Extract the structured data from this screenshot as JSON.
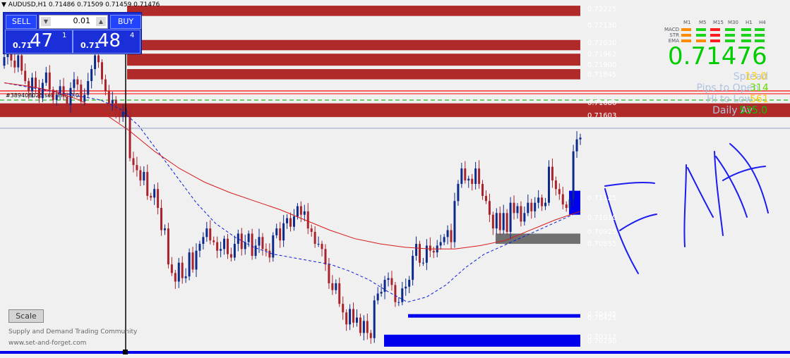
{
  "symbol_bar": "AUDUSD,H1  0.71486 0.71509 0.71459 0.71476",
  "trade_panel": {
    "sell_label": "SELL",
    "buy_label": "BUY",
    "lot_size": "0.01",
    "lot_down_icon": "triangle-down",
    "lot_up_icon": "triangle-up",
    "sell_prefix": "0.71",
    "sell_big": "47",
    "sell_sup": "1",
    "buy_prefix": "0.71",
    "buy_big": "48",
    "buy_sup": "4"
  },
  "timeframe_panel": {
    "timeframes": [
      "M1",
      "M5",
      "M15",
      "M30",
      "H1",
      "H4"
    ],
    "indicators": [
      {
        "name": "MACD",
        "signals": [
          "orange",
          "green",
          "red",
          "green",
          "green",
          "green"
        ]
      },
      {
        "name": "STR",
        "signals": [
          "orange",
          "green",
          "red",
          "green",
          "green",
          "green"
        ]
      },
      {
        "name": "EMA",
        "signals": [
          "orange",
          "orange",
          "red",
          "green",
          "green",
          "green"
        ]
      }
    ]
  },
  "current_price": "0.71476",
  "stats": [
    {
      "label": "Spread",
      "value": "13.0",
      "color": "#ffcc00"
    },
    {
      "label": "Pips to Open",
      "value": "314",
      "color": "#66dd00"
    },
    {
      "label": "Hi to Low",
      "value": "561",
      "color": "#ffcc00"
    },
    {
      "label": "Daily Av",
      "value": "535.0",
      "color": "#00cc00"
    }
  ],
  "scale_button": "Scale",
  "footer": {
    "community": "Supply and Demand Trading Community",
    "website": "www.set-and-forget.com"
  },
  "colors": {
    "supply_zone": "#b02a2a",
    "demand_zone": "#0000ee",
    "neutral_zone": "#707070",
    "bull_candle": "#0b2a8a",
    "bear_candle": "#a8232b",
    "slow_ma": "#d61b1b",
    "fast_ma": "#0a1fd6",
    "price_label": "#00dd00",
    "annotation_ink": "#1c1cf0"
  },
  "order_label": "#389408026 sell limit 0.01",
  "chart_data": {
    "type": "candlestick",
    "symbol": "AUDUSD",
    "timeframe": "H1",
    "ohlc": {
      "open": 0.71486,
      "high": 0.71509,
      "low": 0.71459,
      "close": 0.71476
    },
    "price_levels": [
      "0.72225",
      "0.72130",
      "0.72030",
      "0.71962",
      "0.71900",
      "0.71845",
      "0.71680",
      "0.71603",
      "0.71125",
      "0.71010",
      "0.70925",
      "0.70855",
      "0.70425",
      "0.70445",
      "0.70312",
      "0.70290"
    ],
    "zones": [
      {
        "kind": "supply",
        "top": 0.7225,
        "bottom": 0.7219
      },
      {
        "kind": "supply",
        "top": 0.7205,
        "bottom": 0.7199
      },
      {
        "kind": "supply",
        "top": 0.7197,
        "bottom": 0.719
      },
      {
        "kind": "supply",
        "top": 0.7188,
        "bottom": 0.7182
      },
      {
        "kind": "supply",
        "top": 0.7168,
        "bottom": 0.716
      },
      {
        "kind": "demand",
        "top": 0.7117,
        "bottom": 0.7103
      },
      {
        "kind": "neutral",
        "top": 0.7092,
        "bottom": 0.7086
      },
      {
        "kind": "demand",
        "top": 0.7045,
        "bottom": 0.7043
      },
      {
        "kind": "demand",
        "top": 0.7033,
        "bottom": 0.7026
      }
    ],
    "series": [
      {
        "values": [
          0.7195,
          0.7199,
          0.7193,
          0.7189,
          0.7196,
          0.7187,
          0.7181,
          0.7175,
          0.7183,
          0.7177,
          0.7171,
          0.718,
          0.7186,
          0.7176,
          0.717,
          0.7173,
          0.7178,
          0.7172,
          0.7167,
          0.7177,
          0.7182,
          0.7179,
          0.7169,
          0.7173,
          0.7181,
          0.7188,
          0.7196,
          0.7192,
          0.7182,
          0.7175,
          0.7168,
          0.717,
          0.7163,
          0.716,
          0.7163,
          0.7163,
          0.7136,
          0.7132,
          0.7129,
          0.7123,
          0.7128,
          0.7114,
          0.7113,
          0.7118,
          0.7107,
          0.7094,
          0.7095,
          0.7074,
          0.7069,
          0.7064,
          0.7075,
          0.7066,
          0.7067,
          0.7081,
          0.7071,
          0.7082,
          0.7086,
          0.709,
          0.7095,
          0.7088,
          0.7087,
          0.7082,
          0.7083,
          0.7089,
          0.708,
          0.7078,
          0.7086,
          0.7092,
          0.7083,
          0.7087,
          0.7092,
          0.7079,
          0.7085,
          0.709,
          0.7083,
          0.7082,
          0.7078,
          0.7091,
          0.7095,
          0.7088,
          0.7098,
          0.7101,
          0.7096,
          0.7102,
          0.7108,
          0.7103,
          0.7105,
          0.7095,
          0.7093,
          0.7086,
          0.7086,
          0.7083,
          0.7074,
          0.7063,
          0.7059,
          0.7063,
          0.7051,
          0.7046,
          0.7039,
          0.7048,
          0.704,
          0.7043,
          0.7034,
          0.7041,
          0.7034,
          0.7031,
          0.7053,
          0.7057,
          0.7058,
          0.7065,
          0.7066,
          0.7062,
          0.7052,
          0.7052,
          0.706,
          0.7061,
          0.7065,
          0.7079,
          0.7086,
          0.7075,
          0.7075,
          0.7085,
          0.7082,
          0.7081,
          0.7085,
          0.7087,
          0.709,
          0.7094,
          0.7087,
          0.7111,
          0.7121,
          0.713,
          0.7123,
          0.7124,
          0.7121,
          0.713,
          0.7121,
          0.7114,
          0.7111,
          0.7103,
          0.7095,
          0.7104,
          0.7094,
          0.7104,
          0.7093,
          0.711,
          0.7104,
          0.7108,
          0.7099,
          0.7104,
          0.711,
          0.7105,
          0.711,
          0.7113,
          0.7108,
          0.711,
          0.7131,
          0.7123,
          0.7118,
          0.7115,
          0.7109,
          0.7107,
          0.7112,
          0.714,
          0.7147,
          0.7148
        ]
      },
      {
        "values": [
          0.718,
          0.7178,
          0.7176,
          0.7174,
          0.7172,
          0.717,
          0.7165,
          0.7155,
          0.714,
          0.7125,
          0.711,
          0.7098,
          0.709,
          0.7084,
          0.708,
          0.7078,
          0.7076,
          0.7074,
          0.707,
          0.7065,
          0.7058,
          0.7052,
          0.7055,
          0.7062,
          0.7072,
          0.708,
          0.7085,
          0.709,
          0.7095,
          0.71,
          0.7105
        ]
      },
      {
        "values": [
          0.718,
          0.7178,
          0.7175,
          0.717,
          0.7162,
          0.7152,
          0.714,
          0.713,
          0.7122,
          0.7116,
          0.7111,
          0.7106,
          0.71,
          0.7094,
          0.7089,
          0.7086,
          0.7084,
          0.7083,
          0.7083,
          0.7085,
          0.7088,
          0.7094,
          0.71,
          0.7105
        ]
      }
    ]
  }
}
